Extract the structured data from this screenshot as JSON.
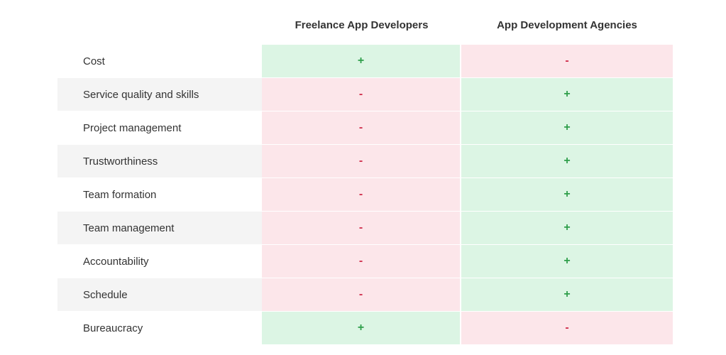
{
  "columns": {
    "col1": "Freelance App Developers",
    "col2": "App Development Agencies"
  },
  "colors": {
    "positive_bg": "#dcf5e4",
    "positive_text": "#2e9e4a",
    "negative_bg": "#fce6ea",
    "negative_text": "#d0324f",
    "stripe_bg": "#f4f4f4"
  },
  "rows": [
    {
      "label": "Cost",
      "col1": "+",
      "col2": "-"
    },
    {
      "label": "Service quality and skills",
      "col1": "-",
      "col2": "+"
    },
    {
      "label": "Project management",
      "col1": "-",
      "col2": "+"
    },
    {
      "label": "Trustworthiness",
      "col1": "-",
      "col2": "+"
    },
    {
      "label": "Team formation",
      "col1": "-",
      "col2": "+"
    },
    {
      "label": "Team management",
      "col1": "-",
      "col2": "+"
    },
    {
      "label": "Accountability",
      "col1": "-",
      "col2": "+"
    },
    {
      "label": "Schedule",
      "col1": "-",
      "col2": "+"
    },
    {
      "label": "Bureaucracy",
      "col1": "+",
      "col2": "-"
    }
  ]
}
